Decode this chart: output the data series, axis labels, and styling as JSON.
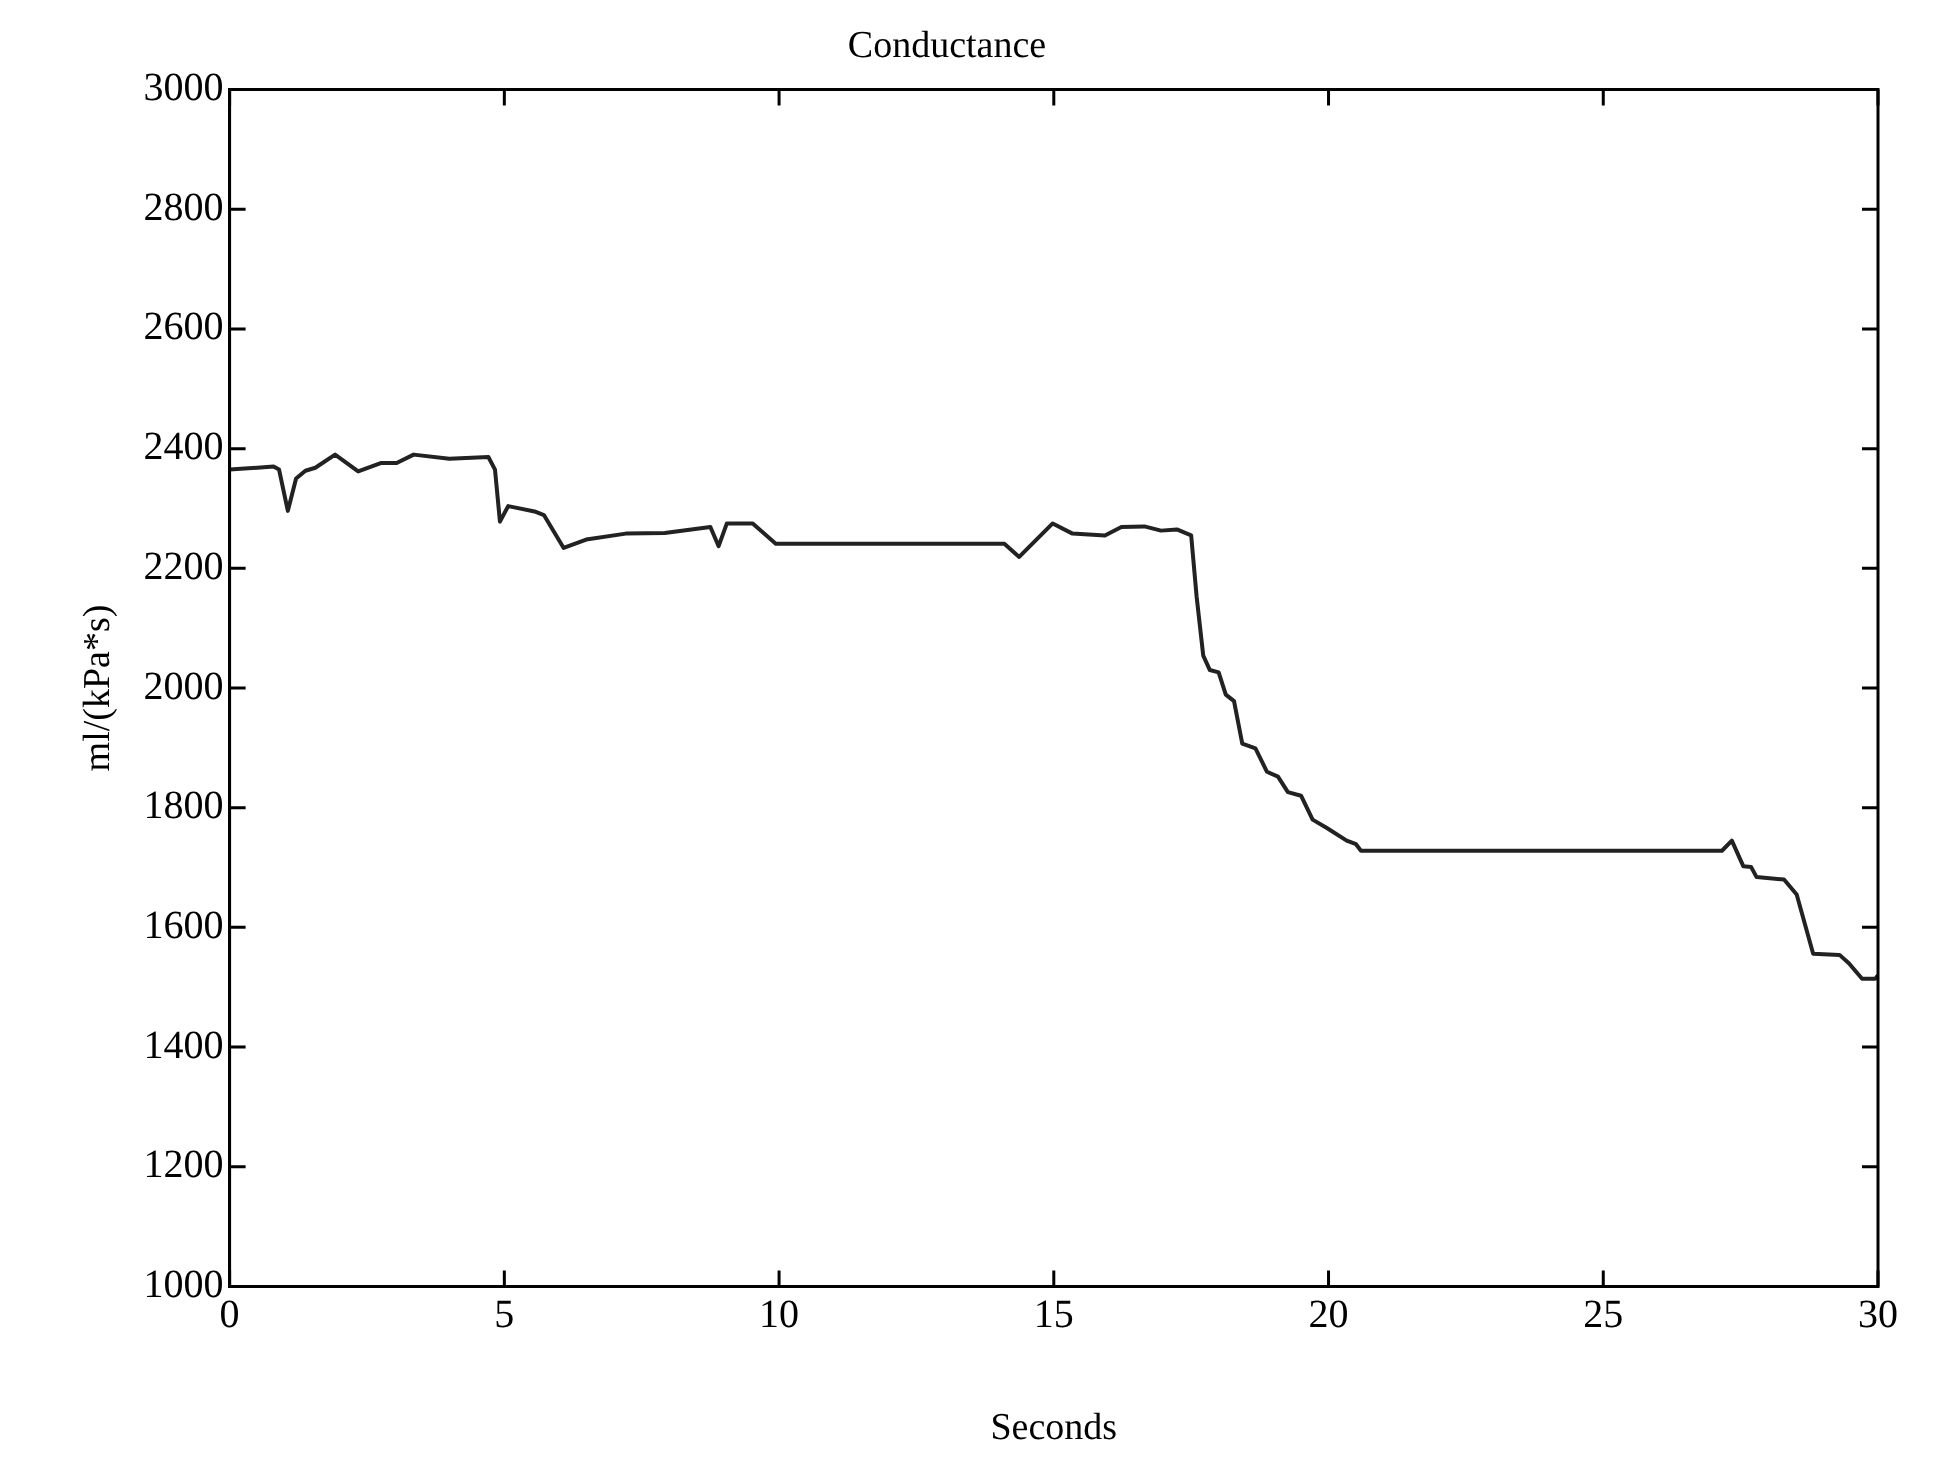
{
  "chart_data": {
    "type": "line",
    "title": "Conductance",
    "xlabel": "Seconds",
    "ylabel": "ml/(kPa*s)",
    "xlim": [
      0,
      30
    ],
    "xticks": [
      0,
      5,
      10,
      15,
      20,
      25,
      30
    ],
    "ylim": [
      1000,
      3000
    ],
    "yticks": [
      1000,
      1200,
      1400,
      1600,
      1800,
      2000,
      2200,
      2400,
      2600,
      2800,
      3000
    ],
    "grid": false,
    "legend": false,
    "marker": "none",
    "line_style": "solid",
    "series": [
      {
        "color": "#222222",
        "x": [
          0,
          0.8,
          0.9,
          1.06,
          1.21,
          1.38,
          1.56,
          1.92,
          2.34,
          2.75,
          3.04,
          3.35,
          4.0,
          4.71,
          4.83,
          4.92,
          5.07,
          5.55,
          5.72,
          6.08,
          6.49,
          7.21,
          7.92,
          8.75,
          8.9,
          9.05,
          9.52,
          9.94,
          14.1,
          14.37,
          14.98,
          15.34,
          15.93,
          16.23,
          16.65,
          16.95,
          17.24,
          17.5,
          17.6,
          17.72,
          17.84,
          18.0,
          18.13,
          18.28,
          18.43,
          18.67,
          18.88,
          19.08,
          19.26,
          19.5,
          19.71,
          19.97,
          20.33,
          20.5,
          20.59,
          27.16,
          27.34,
          27.55,
          27.69,
          27.79,
          28.29,
          28.52,
          28.82,
          29.3,
          29.47,
          29.71,
          29.95,
          30.0
        ],
        "values": [
          2365,
          2370,
          2365,
          2296,
          2350,
          2363,
          2368,
          2390,
          2362,
          2376,
          2376,
          2390,
          2383,
          2386,
          2365,
          2278,
          2304,
          2295,
          2289,
          2234,
          2248,
          2258,
          2259,
          2269,
          2237,
          2275,
          2275,
          2241,
          2241,
          2219,
          2275,
          2258,
          2255,
          2269,
          2270,
          2263,
          2265,
          2255,
          2152,
          2054,
          2030,
          2026,
          1989,
          1978,
          1907,
          1899,
          1860,
          1852,
          1826,
          1820,
          1780,
          1766,
          1745,
          1739,
          1728,
          1728,
          1745,
          1702,
          1701,
          1684,
          1680,
          1655,
          1556,
          1554,
          1540,
          1514,
          1514,
          1520
        ]
      }
    ]
  }
}
